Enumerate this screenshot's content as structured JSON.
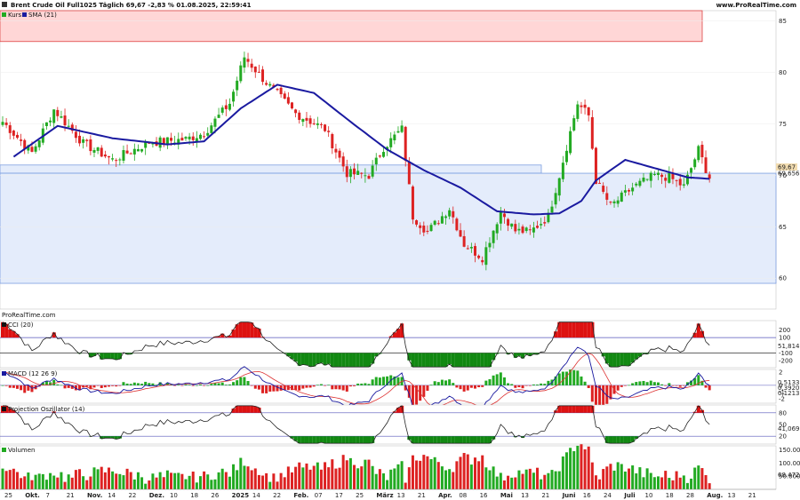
{
  "header": {
    "title": "Brent Crude Oil Full1025 Täglich 69,67 -2,83 % 01.08.2025, 22:59:41",
    "site": "www.ProRealTime.com"
  },
  "legends": {
    "kurs": "Kurs",
    "sma": "SMA (21)",
    "cci": "CCI (20)",
    "macd": "MACD (12 26 9)",
    "proj": "Projection Oszillator (14)",
    "vol": "Volumen"
  },
  "watermark": "ProRealTime.com",
  "colors": {
    "up": "#22aa22",
    "down": "#dd2222",
    "sma": "#1a1aa0",
    "zone_red": "#ffd6d6",
    "zone_blue": "#e4ecfb",
    "pos_fill": "#dd1111",
    "neg_fill": "#118811"
  },
  "chart_data": [
    {
      "type": "candlestick",
      "title": "Brent Crude Oil Full1025 Täglich",
      "ylim": [
        57,
        86
      ],
      "yticks": [
        "85",
        "80",
        "75",
        "70",
        "65",
        "60"
      ],
      "last_price": "69,67",
      "sma_last": "69,656",
      "x_labels": [
        "25",
        "Okt.",
        "7",
        "21",
        "Nov.",
        "14",
        "22",
        "Dez.",
        "10",
        "18",
        "26",
        "2025",
        "14",
        "22",
        "Feb.",
        "07",
        "17",
        "25",
        "März",
        "13",
        "21",
        "Apr.",
        "08",
        "16",
        "Mai",
        "13",
        "21",
        "Juni",
        "16",
        "24",
        "Juli",
        "10",
        "18",
        "28",
        "Aug.",
        "13",
        "21"
      ],
      "key_points": [
        {
          "x": 0,
          "close": 75.2
        },
        {
          "x": 8,
          "close": 72.2
        },
        {
          "x": 14,
          "close": 76.4
        },
        {
          "x": 22,
          "close": 73.1
        },
        {
          "x": 30,
          "close": 71.5
        },
        {
          "x": 40,
          "close": 73.2
        },
        {
          "x": 50,
          "close": 73.5
        },
        {
          "x": 55,
          "close": 74.1
        },
        {
          "x": 62,
          "close": 77.0
        },
        {
          "x": 66,
          "close": 81.5
        },
        {
          "x": 72,
          "close": 79.0
        },
        {
          "x": 80,
          "close": 76.0
        },
        {
          "x": 88,
          "close": 74.5
        },
        {
          "x": 94,
          "close": 70.2
        },
        {
          "x": 100,
          "close": 70.0
        },
        {
          "x": 104,
          "close": 72.7
        },
        {
          "x": 109,
          "close": 74.5
        },
        {
          "x": 112,
          "close": 66.0
        },
        {
          "x": 116,
          "close": 64.5
        },
        {
          "x": 122,
          "close": 66.8
        },
        {
          "x": 126,
          "close": 63.3
        },
        {
          "x": 131,
          "close": 62.0
        },
        {
          "x": 136,
          "close": 66.5
        },
        {
          "x": 140,
          "close": 64.6
        },
        {
          "x": 144,
          "close": 64.5
        },
        {
          "x": 149,
          "close": 66.0
        },
        {
          "x": 152,
          "close": 70.0
        },
        {
          "x": 157,
          "close": 77.0
        },
        {
          "x": 160,
          "close": 75.8
        },
        {
          "x": 162,
          "close": 69.5
        },
        {
          "x": 166,
          "close": 67.0
        },
        {
          "x": 172,
          "close": 68.8
        },
        {
          "x": 178,
          "close": 70.0
        },
        {
          "x": 182,
          "close": 69.8
        },
        {
          "x": 186,
          "close": 68.9
        },
        {
          "x": 190,
          "close": 72.5
        },
        {
          "x": 193,
          "close": 69.67
        }
      ],
      "sma_points": [
        {
          "x": 3,
          "y": 71.8
        },
        {
          "x": 15,
          "y": 74.8
        },
        {
          "x": 30,
          "y": 73.6
        },
        {
          "x": 45,
          "y": 73.0
        },
        {
          "x": 55,
          "y": 73.3
        },
        {
          "x": 65,
          "y": 76.5
        },
        {
          "x": 75,
          "y": 78.8
        },
        {
          "x": 85,
          "y": 78.0
        },
        {
          "x": 95,
          "y": 75.2
        },
        {
          "x": 105,
          "y": 72.5
        },
        {
          "x": 115,
          "y": 70.5
        },
        {
          "x": 125,
          "y": 68.8
        },
        {
          "x": 135,
          "y": 66.5
        },
        {
          "x": 145,
          "y": 66.2
        },
        {
          "x": 152,
          "y": 66.3
        },
        {
          "x": 158,
          "y": 67.5
        },
        {
          "x": 162,
          "y": 69.5
        },
        {
          "x": 170,
          "y": 71.5
        },
        {
          "x": 180,
          "y": 70.5
        },
        {
          "x": 187,
          "y": 69.8
        },
        {
          "x": 193,
          "y": 69.656
        }
      ],
      "zones": [
        {
          "name": "resistance-zone",
          "y_from": 83.0,
          "y_to": 86.0
        },
        {
          "name": "support-band",
          "y_from": 70.2,
          "y_to": 71.0
        },
        {
          "name": "support-zone",
          "y_from": 59.5,
          "y_to": 70.2
        }
      ]
    },
    {
      "type": "line",
      "title": "CCI (20)",
      "ylim": [
        -290,
        320
      ],
      "yticks": [
        "200",
        "100",
        "-100",
        "-200"
      ],
      "last": "51,814",
      "levels": [
        100,
        -100
      ]
    },
    {
      "type": "line",
      "title": "MACD (12 26 9)",
      "ylim": [
        -2.7,
        2.4
      ],
      "yticks": [
        "2",
        "0",
        "-1",
        "-2"
      ],
      "last_labels": [
        "0,5133",
        "0,3920",
        "0,1213"
      ]
    },
    {
      "type": "line",
      "title": "Projection Oszillator (14)",
      "ylim": [
        0,
        100
      ],
      "yticks": [
        "80",
        "50",
        "20"
      ],
      "last": "41,069",
      "levels": [
        80,
        20
      ]
    },
    {
      "type": "bar",
      "title": "Volumen",
      "ylim": [
        0,
        165000
      ],
      "yticks": [
        "150.000",
        "100.000",
        "50.000"
      ],
      "last": "68.472"
    }
  ]
}
